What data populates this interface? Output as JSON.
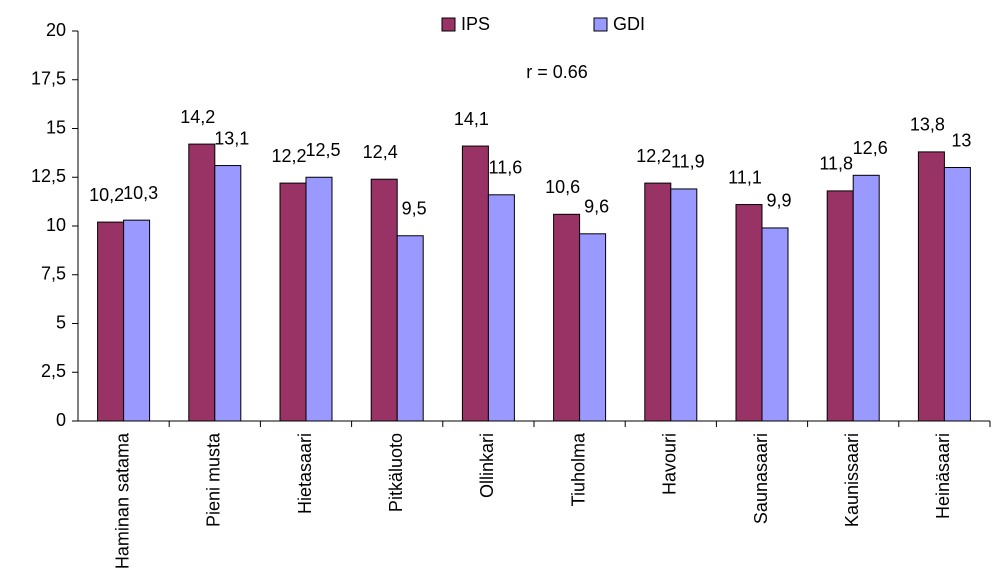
{
  "chart_data": {
    "type": "bar",
    "annotations": [
      "r = 0.66"
    ],
    "categories": [
      "Haminan satama",
      "Pieni musta",
      "Hietasaari",
      "Pitkäluoto",
      "Ollinkari",
      "Tiuholma",
      "Havouri",
      "Saunasaari",
      "Kaunissaari",
      "Heinäsaari"
    ],
    "series": [
      {
        "name": "IPS",
        "color": "#993366",
        "values": [
          10.2,
          14.2,
          12.2,
          12.4,
          14.1,
          10.6,
          12.2,
          11.1,
          11.8,
          13.8
        ],
        "value_labels": [
          "10,2",
          "14,2",
          "12,2",
          "12,4",
          "14,1",
          "10,6",
          "12,2",
          "11,1",
          "11,8",
          "13,8"
        ]
      },
      {
        "name": "GDI",
        "color": "#9999ff",
        "values": [
          10.3,
          13.1,
          12.5,
          9.5,
          11.6,
          9.6,
          11.9,
          9.9,
          12.6,
          13
        ],
        "value_labels": [
          "10,3",
          "13,1",
          "12,5",
          "9,5",
          "11,6",
          "9,6",
          "11,9",
          "9,9",
          "12,6",
          "13"
        ]
      }
    ],
    "ylim": [
      0,
      20
    ],
    "yticks": [
      0,
      {
        "value": 2.5,
        "label": "2,5"
      },
      5,
      {
        "value": 7.5,
        "label": "7,5"
      },
      10,
      {
        "value": 12.5,
        "label": "12,5"
      },
      15,
      {
        "value": 17.5,
        "label": "17,5"
      },
      20
    ],
    "legend": "top"
  }
}
